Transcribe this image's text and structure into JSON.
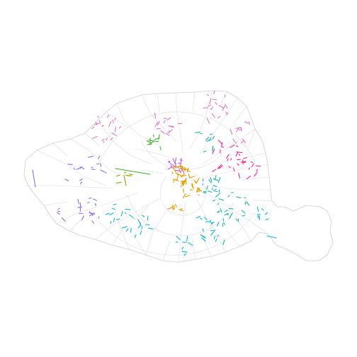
{
  "map": {
    "type": "choropleth-segments",
    "background": "#ffffff",
    "outline_color": "#cfcfcf",
    "district_color": "#dcdcdc",
    "palette": {
      "pink": "#e377c2",
      "magenta": "#ff1f8f",
      "orange": "#e89a00",
      "olive": "#8fa800",
      "green": "#3fae2a",
      "teal": "#19b5a8",
      "cyan": "#12b8d0",
      "violet": "#8f6ef0",
      "purple": "#c45ad9"
    }
  }
}
